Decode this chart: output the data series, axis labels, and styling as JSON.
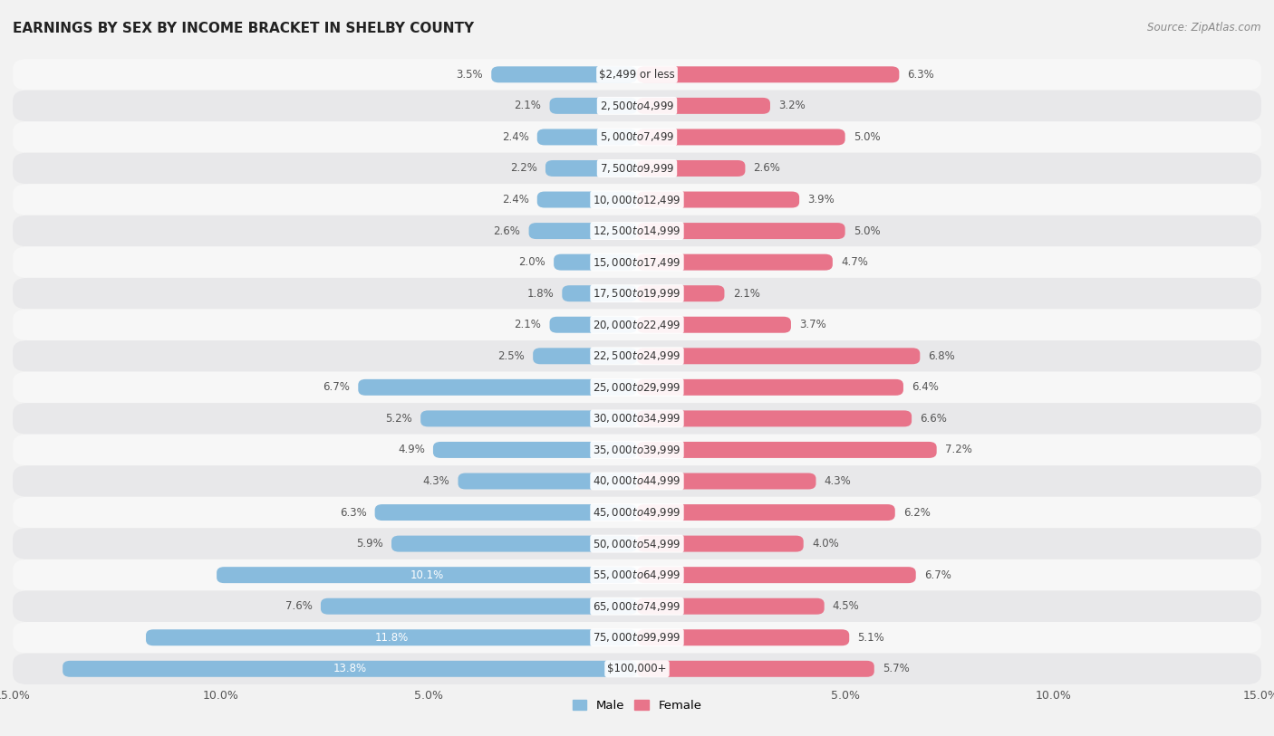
{
  "title": "EARNINGS BY SEX BY INCOME BRACKET IN SHELBY COUNTY",
  "source": "Source: ZipAtlas.com",
  "categories": [
    "$2,499 or less",
    "$2,500 to $4,999",
    "$5,000 to $7,499",
    "$7,500 to $9,999",
    "$10,000 to $12,499",
    "$12,500 to $14,999",
    "$15,000 to $17,499",
    "$17,500 to $19,999",
    "$20,000 to $22,499",
    "$22,500 to $24,999",
    "$25,000 to $29,999",
    "$30,000 to $34,999",
    "$35,000 to $39,999",
    "$40,000 to $44,999",
    "$45,000 to $49,999",
    "$50,000 to $54,999",
    "$55,000 to $64,999",
    "$65,000 to $74,999",
    "$75,000 to $99,999",
    "$100,000+"
  ],
  "male_values": [
    3.5,
    2.1,
    2.4,
    2.2,
    2.4,
    2.6,
    2.0,
    1.8,
    2.1,
    2.5,
    6.7,
    5.2,
    4.9,
    4.3,
    6.3,
    5.9,
    10.1,
    7.6,
    11.8,
    13.8
  ],
  "female_values": [
    6.3,
    3.2,
    5.0,
    2.6,
    3.9,
    5.0,
    4.7,
    2.1,
    3.7,
    6.8,
    6.4,
    6.6,
    7.2,
    4.3,
    6.2,
    4.0,
    6.7,
    4.5,
    5.1,
    5.7
  ],
  "male_color": "#88bbdd",
  "female_color": "#e8748a",
  "label_color_dark": "#555555",
  "label_color_white": "#ffffff",
  "xlim": 15.0,
  "bar_height": 0.52,
  "bg_color": "#f2f2f2",
  "row_color_odd": "#f7f7f7",
  "row_color_even": "#e8e8ea"
}
